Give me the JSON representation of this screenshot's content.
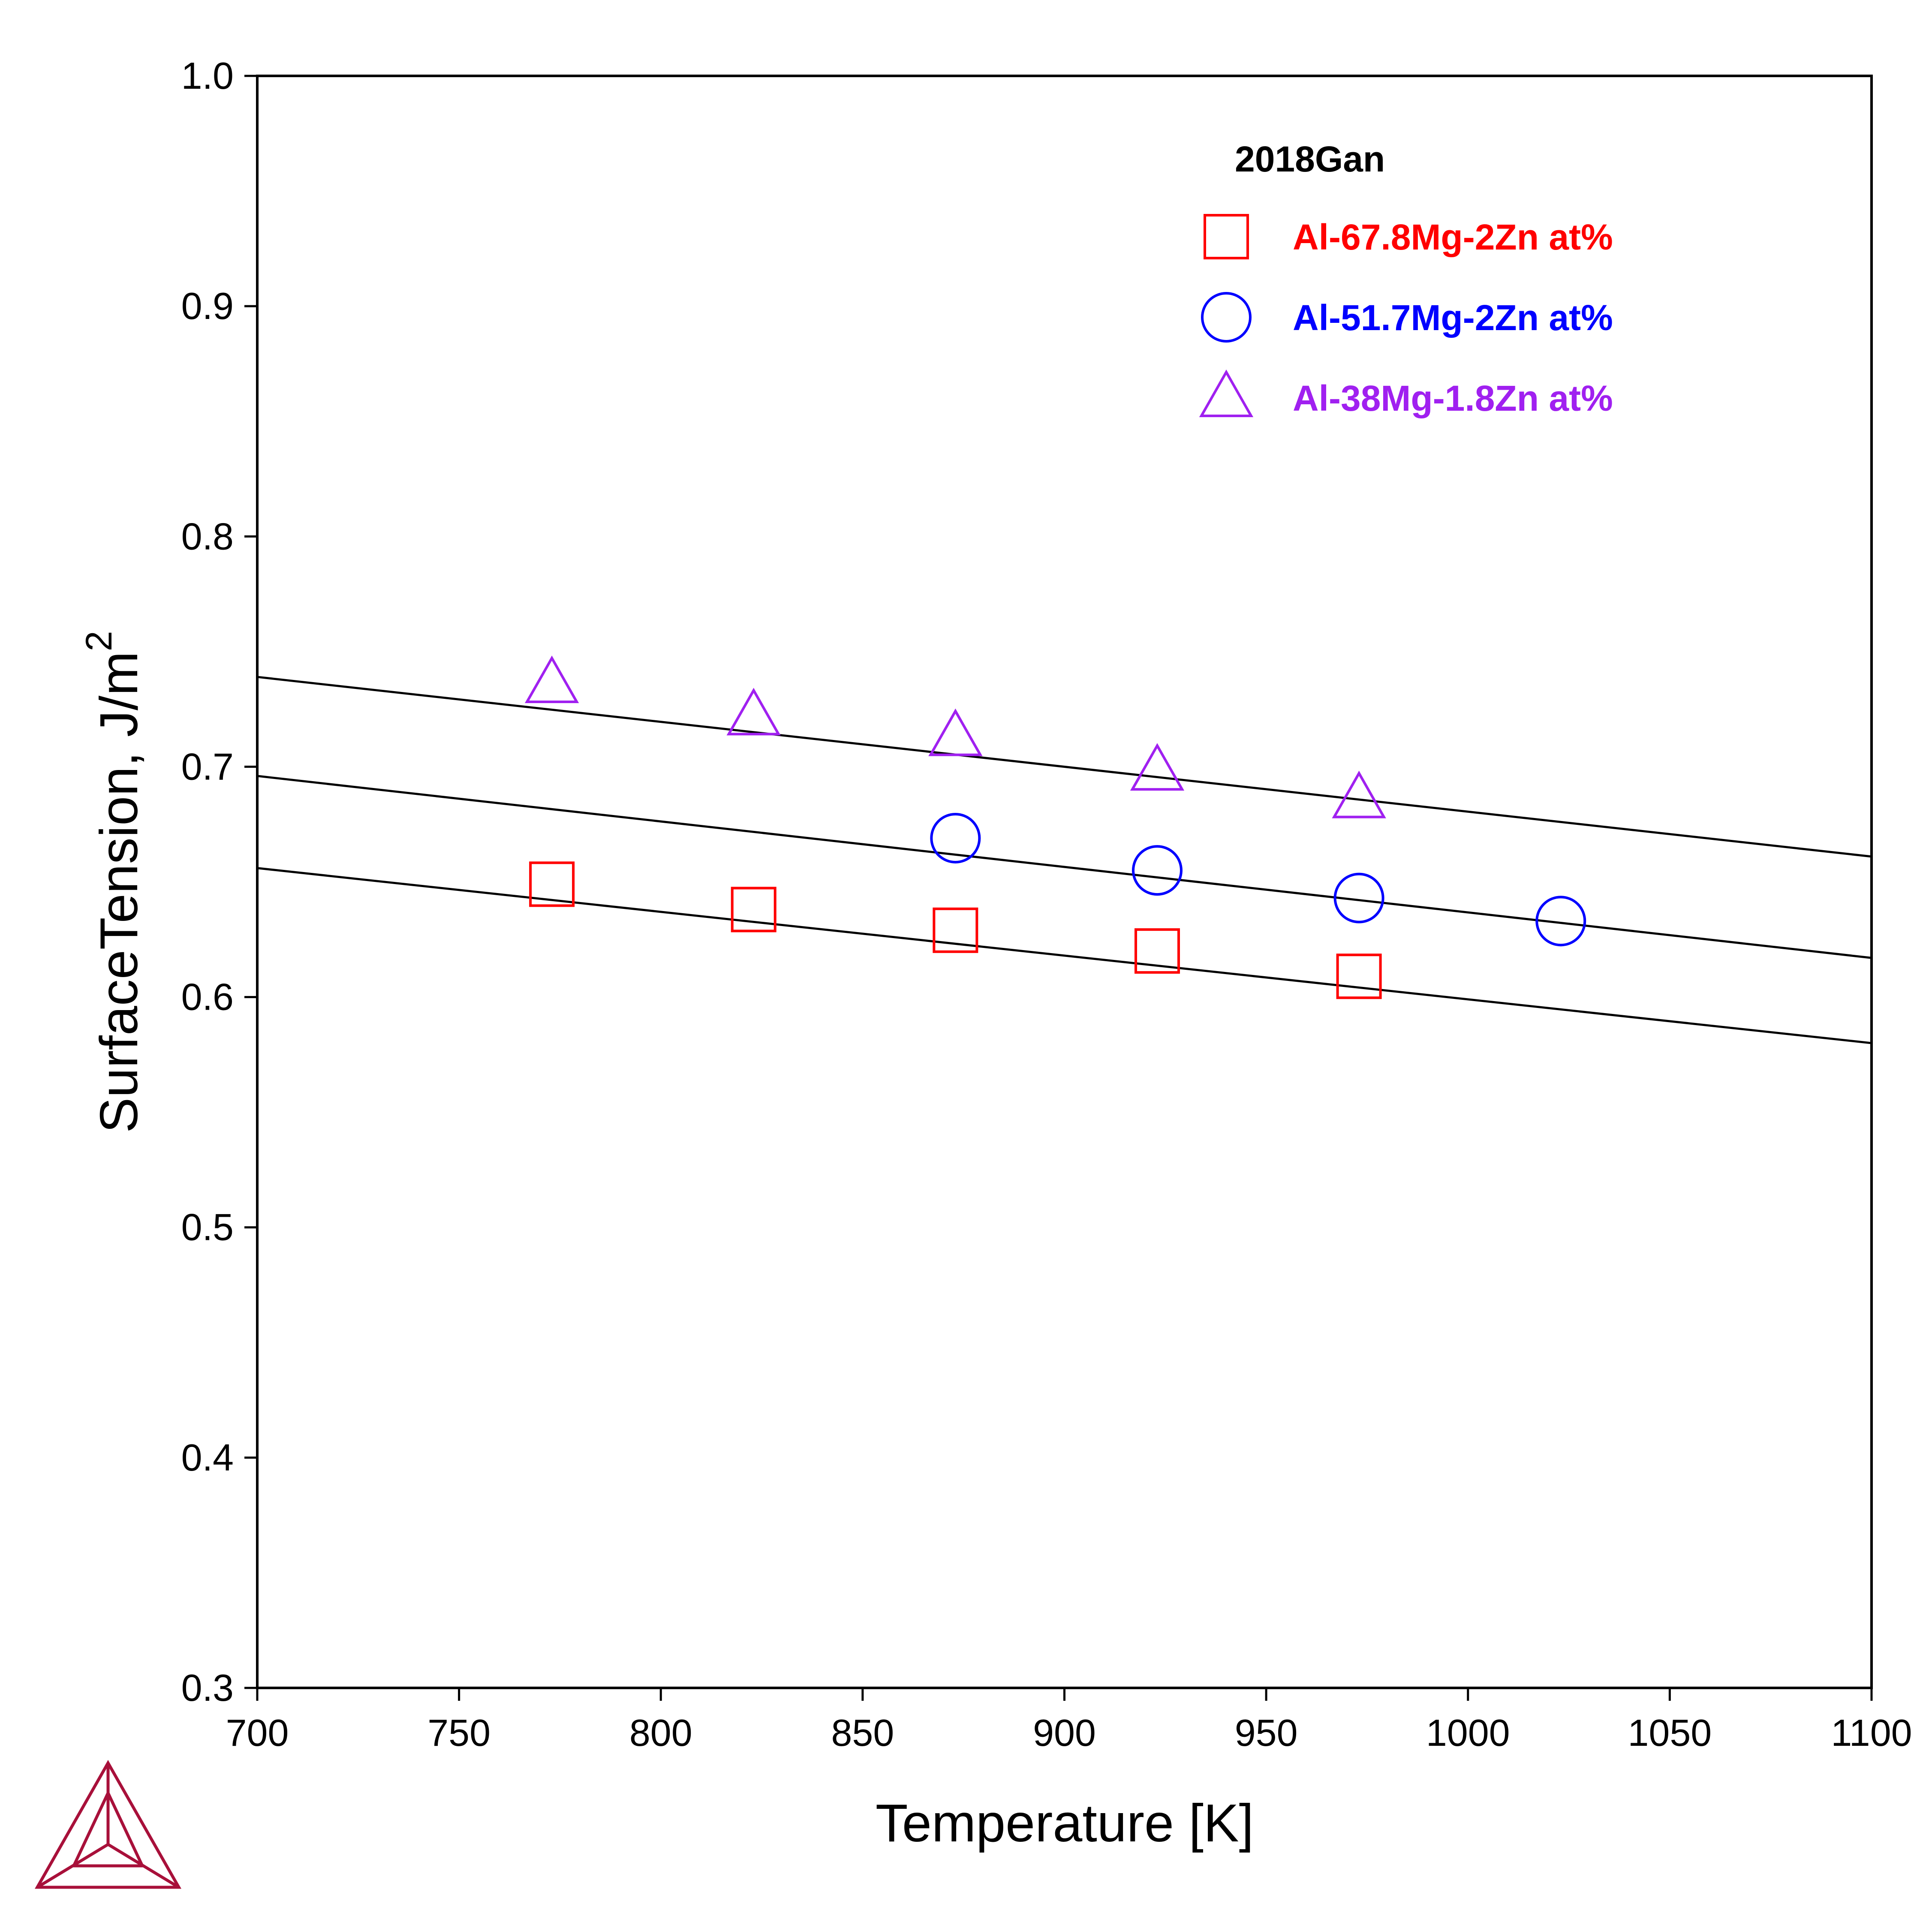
{
  "chart_data": {
    "type": "scatter",
    "xlabel": "Temperature [K]",
    "ylabel": "SurfaceTension, J/",
    "ylabel_unit": "m",
    "ylabel_exp": "2",
    "xlim": [
      700,
      1100
    ],
    "ylim": [
      0.3,
      1.0
    ],
    "x_ticks": [
      "700",
      "750",
      "800",
      "850",
      "900",
      "950",
      "1000",
      "1050",
      "1100"
    ],
    "y_ticks": [
      "0.3",
      "0.4",
      "0.5",
      "0.6",
      "0.7",
      "0.8",
      "0.9",
      "1.0"
    ],
    "grid": false,
    "legend": {
      "title": "2018Gan",
      "placement": "top-right"
    },
    "series": [
      {
        "name": "Al-67.8Mg-2Zn at%",
        "marker": "square",
        "color": "#ff0000",
        "x": [
          773,
          823,
          873,
          923,
          973
        ],
        "y": [
          0.649,
          0.638,
          0.629,
          0.62,
          0.609
        ]
      },
      {
        "name": "Al-51.7Mg-2Zn at%",
        "marker": "circle",
        "color": "#0000ff",
        "x": [
          873,
          923,
          973,
          1023
        ],
        "y": [
          0.669,
          0.655,
          0.643,
          0.633
        ]
      },
      {
        "name": "Al-38Mg-1.8Zn at%",
        "marker": "triangle",
        "color": "#a020f0",
        "x": [
          773,
          823,
          873,
          923,
          973
        ],
        "y": [
          0.736,
          0.722,
          0.713,
          0.698,
          0.686
        ]
      }
    ],
    "lines": [
      {
        "color": "#000000",
        "x": [
          700,
          1100
        ],
        "y": [
          0.739,
          0.661
        ]
      },
      {
        "color": "#000000",
        "x": [
          700,
          1100
        ],
        "y": [
          0.696,
          0.617
        ]
      },
      {
        "color": "#000000",
        "x": [
          700,
          1100
        ],
        "y": [
          0.656,
          0.58
        ]
      }
    ]
  },
  "logo": {
    "color": "#a8103a"
  }
}
